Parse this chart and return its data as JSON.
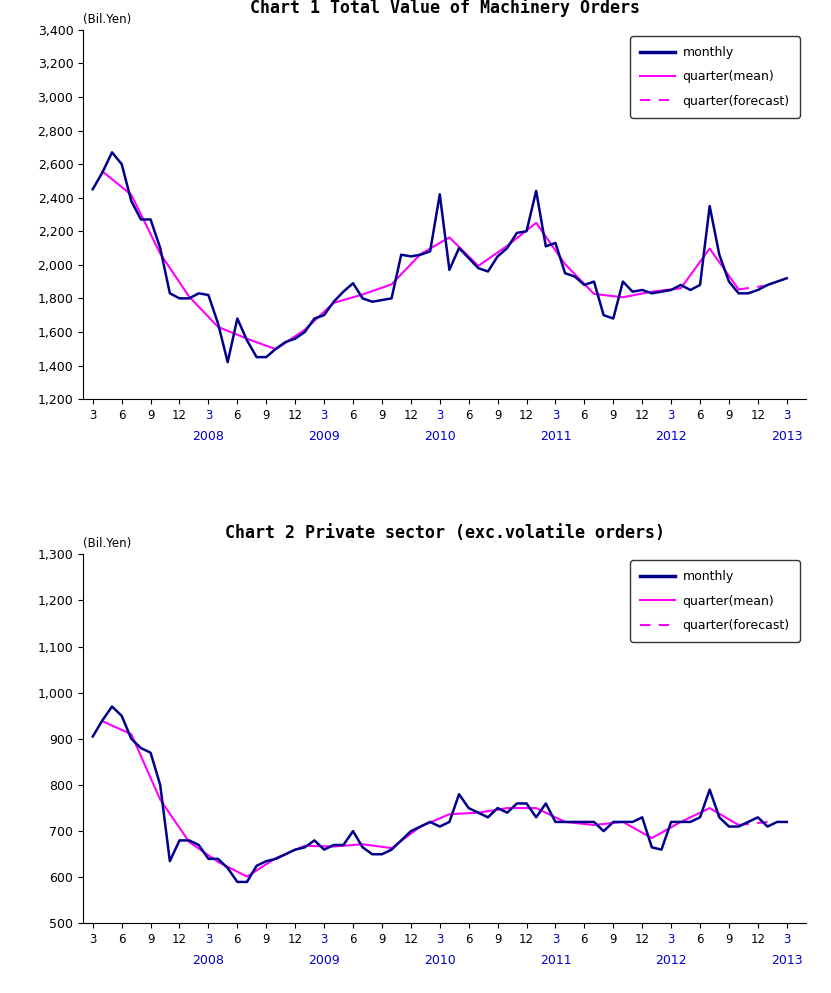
{
  "chart1_title": "Chart 1 Total Value of Machinery Orders",
  "chart2_title": "Chart 2 Private sector (exc.volatile orders)",
  "ylabel": "(Bil.Yen)",
  "chart1_ylim": [
    1200,
    3400
  ],
  "chart1_yticks": [
    1200,
    1400,
    1600,
    1800,
    2000,
    2200,
    2400,
    2600,
    2800,
    3000,
    3200,
    3400
  ],
  "chart2_ylim": [
    500,
    1300
  ],
  "chart2_yticks": [
    500,
    600,
    700,
    800,
    900,
    1000,
    1100,
    1200,
    1300
  ],
  "monthly_color": "#00008B",
  "quarter_mean_color": "#FF00FF",
  "monthly_lw": 1.8,
  "quarter_lw": 1.5,
  "year_labels": [
    "2008",
    "2009",
    "2010",
    "2011",
    "2012",
    "2013"
  ],
  "year_x_positions": [
    12,
    24,
    36,
    48,
    60,
    72
  ],
  "chart1_monthly": [
    2450,
    2550,
    2670,
    2600,
    2380,
    2270,
    2270,
    2100,
    1830,
    1800,
    1800,
    1830,
    1820,
    1650,
    1420,
    1680,
    1550,
    1450,
    1450,
    1500,
    1540,
    1560,
    1600,
    1680,
    1700,
    1780,
    1840,
    1890,
    1800,
    1780,
    1790,
    1800,
    2060,
    2050,
    2060,
    2080,
    2420,
    1970,
    2100,
    2040,
    1980,
    1960,
    2050,
    2100,
    2190,
    2200,
    2440,
    2110,
    2130,
    1950,
    1930,
    1880,
    1900,
    1700,
    1680,
    1900,
    1840,
    1850,
    1830,
    1840,
    1850,
    1880,
    1850,
    1880,
    2350,
    2060,
    1900,
    1830,
    1830,
    1850,
    1880,
    1900,
    1920
  ],
  "chart2_monthly": [
    905,
    940,
    970,
    950,
    900,
    880,
    870,
    800,
    635,
    680,
    680,
    670,
    640,
    640,
    620,
    590,
    590,
    625,
    635,
    640,
    650,
    660,
    665,
    680,
    660,
    670,
    670,
    700,
    665,
    650,
    650,
    660,
    680,
    700,
    710,
    720,
    710,
    720,
    780,
    750,
    740,
    730,
    750,
    740,
    760,
    760,
    730,
    760,
    720,
    720,
    720,
    720,
    720,
    700,
    720,
    720,
    720,
    730,
    665,
    660,
    720,
    720,
    720,
    730,
    790,
    730,
    710,
    710,
    720,
    730,
    710,
    720,
    720
  ],
  "forecast_split_idx": 21
}
